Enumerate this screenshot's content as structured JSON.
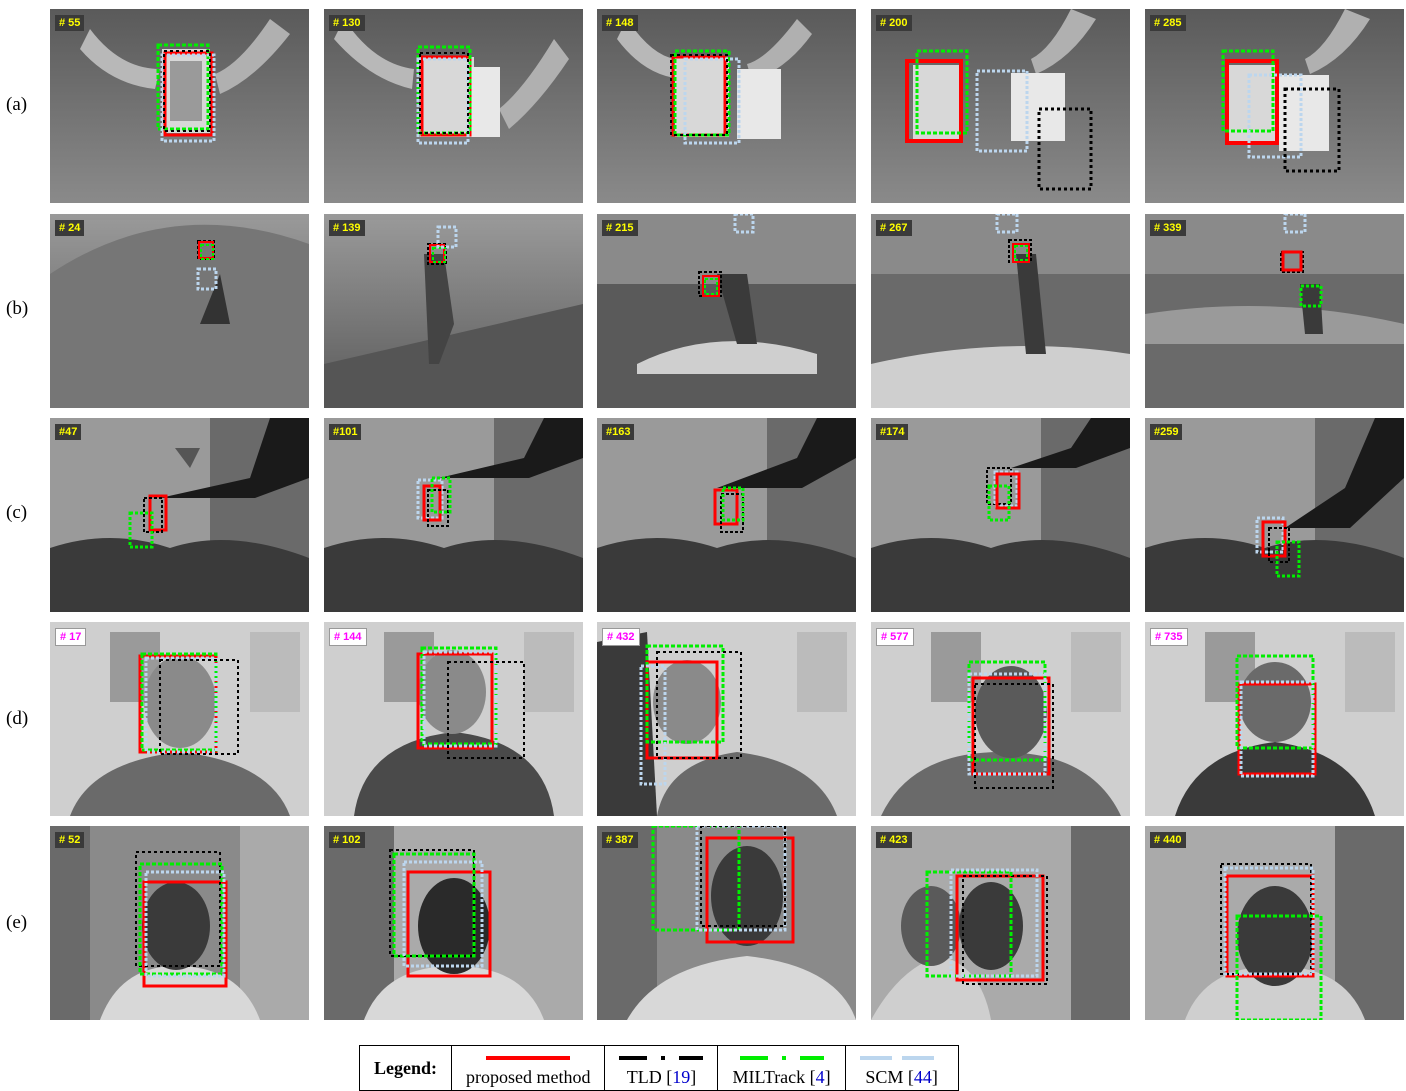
{
  "row_labels": [
    "(a)",
    "(b)",
    "(c)",
    "(d)",
    "(e)"
  ],
  "frames": [
    [
      "# 55",
      "# 130",
      "# 148",
      "# 200",
      "# 285"
    ],
    [
      "# 24",
      "# 139",
      "# 215",
      "# 267",
      "# 339"
    ],
    [
      "#47",
      "#101",
      "#163",
      "#174",
      "#259"
    ],
    [
      "# 17",
      "# 144",
      "# 432",
      "# 577",
      "# 735"
    ],
    [
      "# 52",
      "# 102",
      "# 387",
      "# 423",
      "# 440"
    ]
  ],
  "legend": {
    "title": "Legend:",
    "items": [
      {
        "name": "proposed method",
        "ref": "",
        "color": "#ff0000"
      },
      {
        "name": "TLD [",
        "ref": "19",
        "color": "#000000"
      },
      {
        "name": "MILTrack [",
        "ref": "4",
        "color": "#00ee00"
      },
      {
        "name": "SCM [",
        "ref": "44",
        "color": "#bcd6ee"
      }
    ]
  },
  "colors": {
    "proposed": "#ff0000",
    "tld": "#000000",
    "miltrack": "#00ee00",
    "scm": "#bcd6ee"
  }
}
